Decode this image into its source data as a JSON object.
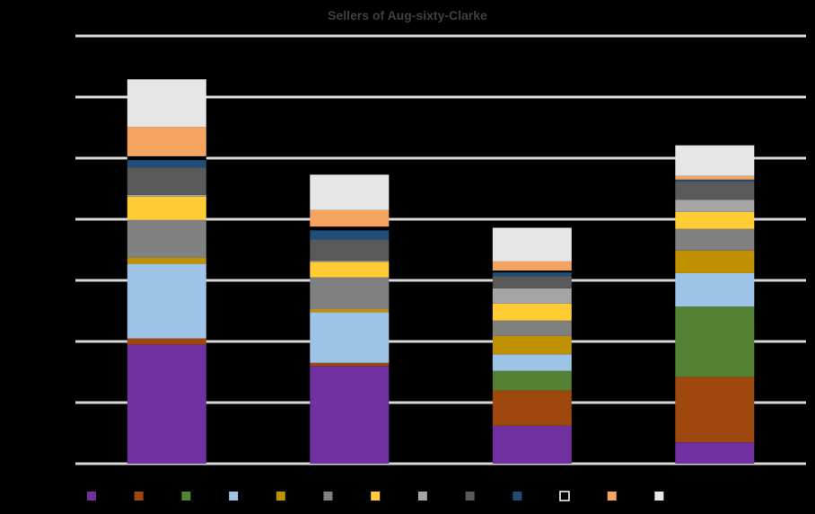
{
  "chart_data": {
    "type": "bar",
    "stacked": true,
    "title": "Sellers of Aug-sixty-Clarke",
    "xlabel": "",
    "ylabel": "",
    "ylim": [
      0,
      7
    ],
    "grid": true,
    "legend": "bottom",
    "categories": [
      "",
      "",
      "",
      ""
    ],
    "series": [
      {
        "color": "#7030A0",
        "values": [
          1.95,
          1.6,
          0.62,
          0.35
        ]
      },
      {
        "color": "#9E480E",
        "values": [
          0.1,
          0.05,
          0.58,
          1.07
        ]
      },
      {
        "color": "#548235",
        "values": [
          0,
          0,
          0.32,
          1.15
        ]
      },
      {
        "color": "#9DC3E6",
        "values": [
          1.22,
          0.83,
          0.27,
          0.55
        ]
      },
      {
        "color": "#BF9000",
        "values": [
          0.1,
          0.05,
          0.3,
          0.37
        ]
      },
      {
        "color": "#808080",
        "values": [
          0.62,
          0.52,
          0.25,
          0.35
        ]
      },
      {
        "color": "#FFCC33",
        "values": [
          0.38,
          0.25,
          0.28,
          0.28
        ]
      },
      {
        "color": "#A5A5A5",
        "values": [
          0.03,
          0.02,
          0.25,
          0.2
        ]
      },
      {
        "color": "#595959",
        "values": [
          0.45,
          0.35,
          0.2,
          0.3
        ]
      },
      {
        "color": "#1F4E79",
        "values": [
          0.12,
          0.15,
          0.06,
          0.03
        ]
      },
      {
        "color": "#000000",
        "values": [
          0.06,
          0.06,
          0.03,
          0
        ]
      },
      {
        "color": "#F4A460",
        "values": [
          0.48,
          0.27,
          0.15,
          0.06
        ]
      },
      {
        "color": "#E7E6E6",
        "values": [
          0.78,
          0.58,
          0.55,
          0.5
        ]
      }
    ],
    "data_labels": [
      "",
      "",
      "",
      ""
    ]
  }
}
